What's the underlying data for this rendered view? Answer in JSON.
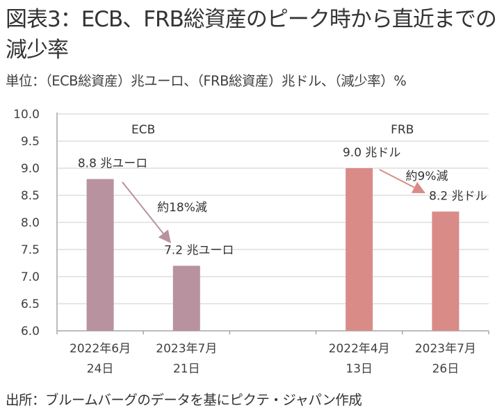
{
  "header": {
    "title": "図表3：ECB、FRB総資産のピーク時から直近までの減少率",
    "subtitle": "単位：（ECB総資産）兆ユーロ、（FRB総資産）兆ドル、（減少率）%"
  },
  "footer": {
    "source": "出所：ブルームバーグのデータを基にピクテ・ジャパン作成"
  },
  "colors": {
    "ecb": "#b9929f",
    "frb": "#d98b88",
    "grid": "#e6e6e6",
    "axis": "#a6a6a6"
  },
  "chart_data": {
    "type": "bar",
    "title": "図表3：ECB、FRB総資産のピーク時から直近までの減少率",
    "xlabel": "",
    "ylabel": "",
    "ylim": [
      6.0,
      10.0
    ],
    "yticks": [
      "6.0",
      "6.5",
      "7.0",
      "7.5",
      "8.0",
      "8.5",
      "9.0",
      "9.5",
      "10.0"
    ],
    "ytick_values": [
      6.0,
      6.5,
      7.0,
      7.5,
      8.0,
      8.5,
      9.0,
      9.5,
      10.0
    ],
    "grid": true,
    "categories": [
      [
        "2022年6月",
        "24日"
      ],
      [
        "2023年7月",
        "21日"
      ],
      [
        "",
        ""
      ],
      [
        "2022年4月",
        "13日"
      ],
      [
        "2023年7月",
        "26日"
      ]
    ],
    "series": [
      {
        "name": "ECB",
        "unit": "兆ユーロ",
        "color": "#b9929f",
        "values": [
          8.8,
          7.2,
          null,
          null,
          null
        ],
        "data_labels": [
          "8.8  兆ユーロ",
          "7.2  兆ユーロ",
          "",
          "",
          ""
        ]
      },
      {
        "name": "FRB",
        "unit": "兆ドル",
        "color": "#d98b88",
        "values": [
          null,
          null,
          null,
          9.0,
          8.2
        ],
        "data_labels": [
          "",
          "",
          "",
          "9.0  兆ドル",
          "8.2  兆ドル"
        ]
      }
    ],
    "group_labels": [
      "ECB",
      "FRB"
    ],
    "annotations": [
      {
        "text": "約18%減",
        "series": "ECB",
        "from_category": 0,
        "to_category": 1
      },
      {
        "text": "約9%減",
        "series": "FRB",
        "from_category": 3,
        "to_category": 4
      }
    ]
  }
}
